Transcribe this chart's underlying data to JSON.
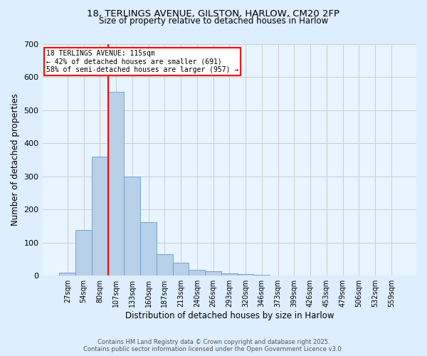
{
  "title_line1": "18, TERLINGS AVENUE, GILSTON, HARLOW, CM20 2FP",
  "title_line2": "Size of property relative to detached houses in Harlow",
  "xlabel": "Distribution of detached houses by size in Harlow",
  "ylabel": "Number of detached properties",
  "categories": [
    "27sqm",
    "54sqm",
    "80sqm",
    "107sqm",
    "133sqm",
    "160sqm",
    "187sqm",
    "213sqm",
    "240sqm",
    "266sqm",
    "293sqm",
    "320sqm",
    "346sqm",
    "373sqm",
    "399sqm",
    "426sqm",
    "453sqm",
    "479sqm",
    "506sqm",
    "532sqm",
    "559sqm"
  ],
  "values": [
    8,
    137,
    360,
    555,
    300,
    162,
    65,
    40,
    18,
    13,
    6,
    5,
    2,
    1,
    0,
    0,
    0,
    0,
    0,
    0,
    0
  ],
  "bar_color": "#b8d0e8",
  "bar_edge_color": "#6699cc",
  "grid_color": "#cccccc",
  "vline_x": 3.0,
  "vline_color": "red",
  "annotation_text_line1": "18 TERLINGS AVENUE: 115sqm",
  "annotation_text_line2": "← 42% of detached houses are smaller (691)",
  "annotation_text_line3": "58% of semi-detached houses are larger (957) →",
  "ylim": [
    0,
    700
  ],
  "yticks": [
    0,
    100,
    200,
    300,
    400,
    500,
    600,
    700
  ],
  "footnote_line1": "Contains HM Land Registry data © Crown copyright and database right 2025.",
  "footnote_line2": "Contains public sector information licensed under the Open Government Licence v3.0.",
  "bg_color": "#ddeeff",
  "plot_bg_color": "#e8f4ff"
}
